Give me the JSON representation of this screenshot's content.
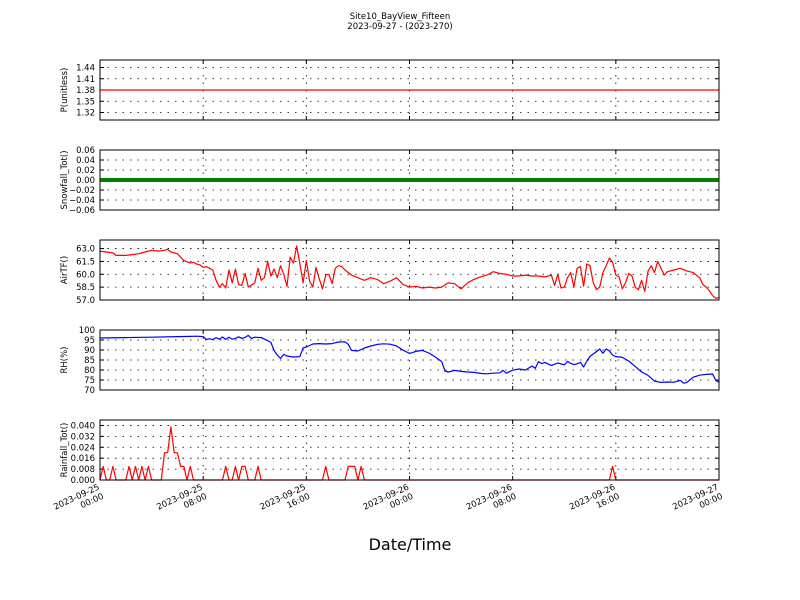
{
  "title": "Site10_BayView_Fifteen",
  "subtitle": "2023-09-27 - (2023-270)",
  "xlabel": "Date/Time",
  "x_ticks": [
    {
      "l1": "2023-09-25",
      "l2": "00:00",
      "h": 0
    },
    {
      "l1": "2023-09-25",
      "l2": "08:00",
      "h": 8
    },
    {
      "l1": "2023-09-25",
      "l2": "16:00",
      "h": 16
    },
    {
      "l1": "2023-09-26",
      "l2": "00:00",
      "h": 24
    },
    {
      "l1": "2023-09-26",
      "l2": "08:00",
      "h": 32
    },
    {
      "l1": "2023-09-26",
      "l2": "16:00",
      "h": 40
    },
    {
      "l1": "2023-09-27",
      "l2": "00:00",
      "h": 48
    }
  ],
  "chart_data": [
    {
      "type": "line",
      "ylabel": "P(unitless)",
      "ylim": [
        1.3,
        1.46
      ],
      "yticks": [
        1.32,
        1.35,
        1.38,
        1.41,
        1.44
      ],
      "ytick_labels": [
        "1.32",
        "1.35",
        "1.38",
        "1.41",
        "1.44"
      ],
      "color": "#ff0000",
      "grid": true,
      "points": [
        [
          0,
          1.38
        ],
        [
          48,
          1.38
        ]
      ]
    },
    {
      "type": "line",
      "ylabel": "Snowfall_Tot()",
      "ylim": [
        -0.06,
        0.06
      ],
      "yticks": [
        -0.06,
        -0.04,
        -0.02,
        0.0,
        0.02,
        0.04,
        0.06
      ],
      "ytick_labels": [
        "−0.06",
        "−0.04",
        "−0.02",
        "0.00",
        "0.02",
        "0.04",
        "0.06"
      ],
      "color": "#008000",
      "markers": true,
      "grid": true,
      "points": [
        [
          0,
          0
        ],
        [
          48,
          0
        ]
      ]
    },
    {
      "type": "line",
      "ylabel": "AirTF()",
      "ylim": [
        57.0,
        64.0
      ],
      "yticks": [
        57.0,
        58.5,
        60.0,
        61.5,
        63.0
      ],
      "ytick_labels": [
        "57.0",
        "58.5",
        "60.0",
        "61.5",
        "63.0"
      ],
      "color": "#ff0000",
      "grid": true,
      "points": [
        [
          0,
          62.7
        ],
        [
          0.5,
          62.6
        ],
        [
          1,
          62.5
        ],
        [
          1.25,
          62.2
        ],
        [
          2,
          62.2
        ],
        [
          2.5,
          62.3
        ],
        [
          3,
          62.4
        ],
        [
          3.5,
          62.6
        ],
        [
          4,
          62.8
        ],
        [
          4.5,
          62.7
        ],
        [
          5,
          62.8
        ],
        [
          5.25,
          62.9
        ],
        [
          5.5,
          62.6
        ],
        [
          6,
          62.4
        ],
        [
          6.25,
          62.0
        ],
        [
          6.5,
          61.6
        ],
        [
          7,
          61.3
        ],
        [
          7.25,
          61.4
        ],
        [
          7.5,
          61.2
        ],
        [
          7.75,
          61.1
        ],
        [
          8,
          60.8
        ],
        [
          8.25,
          60.9
        ],
        [
          8.5,
          60.7
        ],
        [
          8.75,
          60.5
        ],
        [
          9,
          59.3
        ],
        [
          9.25,
          58.5
        ],
        [
          9.5,
          58.9
        ],
        [
          9.75,
          58.4
        ],
        [
          10,
          60.5
        ],
        [
          10.25,
          59.0
        ],
        [
          10.5,
          60.6
        ],
        [
          10.75,
          58.8
        ],
        [
          11,
          58.7
        ],
        [
          11.25,
          60.1
        ],
        [
          11.5,
          58.5
        ],
        [
          12,
          59.0
        ],
        [
          12.25,
          60.7
        ],
        [
          12.5,
          59.3
        ],
        [
          12.75,
          59.6
        ],
        [
          13,
          61.5
        ],
        [
          13.25,
          59.8
        ],
        [
          13.5,
          60.6
        ],
        [
          13.75,
          59.6
        ],
        [
          14,
          61.0
        ],
        [
          14.25,
          60.0
        ],
        [
          14.5,
          58.6
        ],
        [
          14.75,
          62.0
        ],
        [
          15,
          61.3
        ],
        [
          15.25,
          63.3
        ],
        [
          15.5,
          61.2
        ],
        [
          15.75,
          59.0
        ],
        [
          16,
          61.6
        ],
        [
          16.25,
          59.2
        ],
        [
          16.5,
          58.5
        ],
        [
          16.75,
          60.8
        ],
        [
          17,
          59.5
        ],
        [
          17.25,
          58.3
        ],
        [
          17.5,
          59.9
        ],
        [
          17.75,
          60.0
        ],
        [
          18,
          58.9
        ],
        [
          18.25,
          60.7
        ],
        [
          18.5,
          61.0
        ],
        [
          18.75,
          60.9
        ],
        [
          19,
          60.5
        ],
        [
          19.5,
          59.9
        ],
        [
          20,
          59.6
        ],
        [
          20.5,
          59.3
        ],
        [
          21,
          59.6
        ],
        [
          21.5,
          59.4
        ],
        [
          22,
          58.9
        ],
        [
          22.5,
          59.2
        ],
        [
          23,
          59.6
        ],
        [
          23.5,
          58.8
        ],
        [
          24,
          58.5
        ],
        [
          24.5,
          58.6
        ],
        [
          25,
          58.4
        ],
        [
          25.5,
          58.5
        ],
        [
          26,
          58.4
        ],
        [
          26.5,
          58.5
        ],
        [
          27,
          59.0
        ],
        [
          27.5,
          58.9
        ],
        [
          28,
          58.3
        ],
        [
          28.5,
          59.0
        ],
        [
          29,
          59.4
        ],
        [
          29.5,
          59.7
        ],
        [
          30,
          59.9
        ],
        [
          30.5,
          60.3
        ],
        [
          31,
          60.1
        ],
        [
          31.5,
          60.0
        ],
        [
          32,
          59.8
        ],
        [
          32.5,
          59.8
        ],
        [
          33,
          59.9
        ],
        [
          33.5,
          59.8
        ],
        [
          34,
          59.8
        ],
        [
          34.5,
          59.7
        ],
        [
          35,
          59.9
        ],
        [
          35.25,
          58.7
        ],
        [
          35.5,
          60.0
        ],
        [
          35.75,
          58.4
        ],
        [
          36,
          58.5
        ],
        [
          36.25,
          59.6
        ],
        [
          36.5,
          60.2
        ],
        [
          36.75,
          58.5
        ],
        [
          37,
          60.7
        ],
        [
          37.25,
          60.9
        ],
        [
          37.5,
          58.6
        ],
        [
          37.75,
          61.2
        ],
        [
          38,
          61.0
        ],
        [
          38.25,
          59.0
        ],
        [
          38.5,
          58.2
        ],
        [
          38.75,
          58.5
        ],
        [
          39,
          60.2
        ],
        [
          39.25,
          61.0
        ],
        [
          39.5,
          61.9
        ],
        [
          39.75,
          61.4
        ],
        [
          40,
          59.9
        ],
        [
          40.25,
          59.7
        ],
        [
          40.5,
          58.3
        ],
        [
          40.75,
          59.0
        ],
        [
          41,
          60.1
        ],
        [
          41.25,
          59.8
        ],
        [
          41.5,
          58.5
        ],
        [
          41.75,
          58.2
        ],
        [
          42,
          59.3
        ],
        [
          42.25,
          58.0
        ],
        [
          42.5,
          60.4
        ],
        [
          42.75,
          61.0
        ],
        [
          43,
          60.2
        ],
        [
          43.25,
          61.5
        ],
        [
          43.5,
          60.7
        ],
        [
          43.75,
          59.9
        ],
        [
          44,
          60.3
        ],
        [
          44.5,
          60.5
        ],
        [
          45,
          60.7
        ],
        [
          45.5,
          60.4
        ],
        [
          46,
          60.2
        ],
        [
          46.5,
          59.6
        ],
        [
          46.75,
          58.8
        ],
        [
          47,
          58.5
        ],
        [
          47.25,
          58.1
        ],
        [
          47.5,
          57.5
        ],
        [
          47.75,
          57.2
        ],
        [
          48,
          57.3
        ]
      ]
    },
    {
      "type": "line",
      "ylabel": "RH(%)",
      "ylim": [
        70,
        100
      ],
      "yticks": [
        70,
        75,
        80,
        85,
        90,
        95,
        100
      ],
      "ytick_labels": [
        "70",
        "75",
        "80",
        "85",
        "90",
        "95",
        "100"
      ],
      "color": "#0000ff",
      "grid": true,
      "points": [
        [
          0,
          96
        ],
        [
          2,
          96.2
        ],
        [
          4,
          96.4
        ],
        [
          6,
          96.7
        ],
        [
          7,
          96.8
        ],
        [
          7.5,
          96.9
        ],
        [
          8,
          96.7
        ],
        [
          8.25,
          95.3
        ],
        [
          8.5,
          95.6
        ],
        [
          8.75,
          95.2
        ],
        [
          9,
          96.2
        ],
        [
          9.25,
          95.4
        ],
        [
          9.5,
          96.5
        ],
        [
          9.75,
          95.3
        ],
        [
          10,
          96.4
        ],
        [
          10.25,
          95.4
        ],
        [
          10.5,
          95.8
        ],
        [
          10.75,
          96.6
        ],
        [
          11,
          95.8
        ],
        [
          11.25,
          96.3
        ],
        [
          11.5,
          97.3
        ],
        [
          11.75,
          95.8
        ],
        [
          12,
          96.4
        ],
        [
          12.5,
          96.2
        ],
        [
          13,
          94.7
        ],
        [
          13.25,
          93.8
        ],
        [
          13.5,
          89.7
        ],
        [
          13.75,
          87.5
        ],
        [
          14,
          85.8
        ],
        [
          14.25,
          87.8
        ],
        [
          14.5,
          87.0
        ],
        [
          15,
          86.5
        ],
        [
          15.5,
          86.7
        ],
        [
          15.75,
          91.0
        ],
        [
          16,
          91.5
        ],
        [
          16.5,
          93.0
        ],
        [
          17,
          93.2
        ],
        [
          17.5,
          93.0
        ],
        [
          18,
          93.2
        ],
        [
          18.5,
          94.0
        ],
        [
          19,
          94.1
        ],
        [
          19.25,
          92.9
        ],
        [
          19.5,
          89.8
        ],
        [
          20,
          89.5
        ],
        [
          20.5,
          91.0
        ],
        [
          21,
          92.0
        ],
        [
          21.5,
          92.8
        ],
        [
          22,
          93.1
        ],
        [
          22.5,
          92.9
        ],
        [
          23,
          92.0
        ],
        [
          23.5,
          89.9
        ],
        [
          24,
          88.3
        ],
        [
          24.5,
          89.3
        ],
        [
          25,
          89.8
        ],
        [
          25.5,
          88.5
        ],
        [
          26,
          86.5
        ],
        [
          26.5,
          84.2
        ],
        [
          26.75,
          79.5
        ],
        [
          27,
          79.0
        ],
        [
          27.5,
          79.8
        ],
        [
          28,
          79.3
        ],
        [
          28.5,
          79.0
        ],
        [
          29,
          78.8
        ],
        [
          29.5,
          78.3
        ],
        [
          30,
          78.1
        ],
        [
          30.5,
          78.4
        ],
        [
          31,
          78.6
        ],
        [
          31.25,
          79.8
        ],
        [
          31.5,
          78.4
        ],
        [
          32,
          79.9
        ],
        [
          32.5,
          80.5
        ],
        [
          33,
          80.0
        ],
        [
          33.5,
          82.0
        ],
        [
          33.75,
          80.8
        ],
        [
          34,
          84.2
        ],
        [
          34.25,
          83.2
        ],
        [
          34.5,
          83.8
        ],
        [
          35,
          82.3
        ],
        [
          35.5,
          83.5
        ],
        [
          36,
          82.6
        ],
        [
          36.25,
          84.3
        ],
        [
          36.5,
          83.3
        ],
        [
          36.75,
          82.7
        ],
        [
          37,
          83.1
        ],
        [
          37.25,
          83.8
        ],
        [
          37.5,
          81.5
        ],
        [
          37.75,
          84.5
        ],
        [
          38,
          86.8
        ],
        [
          38.5,
          89.2
        ],
        [
          38.75,
          90.5
        ],
        [
          39,
          88.4
        ],
        [
          39.25,
          90.5
        ],
        [
          39.5,
          89.5
        ],
        [
          39.75,
          87.5
        ],
        [
          40,
          86.7
        ],
        [
          40.5,
          86.3
        ],
        [
          41,
          84.5
        ],
        [
          41.5,
          81.8
        ],
        [
          42,
          79.0
        ],
        [
          42.5,
          77.3
        ],
        [
          43,
          74.4
        ],
        [
          43.5,
          73.8
        ],
        [
          44,
          74.0
        ],
        [
          44.5,
          73.9
        ],
        [
          45,
          74.8
        ],
        [
          45.25,
          73.4
        ],
        [
          45.5,
          73.8
        ],
        [
          46,
          76.4
        ],
        [
          46.5,
          77.4
        ],
        [
          47,
          77.8
        ],
        [
          47.5,
          78.0
        ],
        [
          47.75,
          74.8
        ],
        [
          48,
          73.9
        ]
      ]
    },
    {
      "type": "line",
      "ylabel": "Rainfall_Tot()",
      "ylim": [
        0.0,
        0.044
      ],
      "yticks": [
        0.0,
        0.008,
        0.016,
        0.024,
        0.032,
        0.04
      ],
      "ytick_labels": [
        "0.000",
        "0.008",
        "0.016",
        "0.024",
        "0.032",
        "0.040"
      ],
      "color": "#ff0000",
      "grid": true,
      "points": [
        [
          0,
          0.0
        ],
        [
          0.25,
          0.01
        ],
        [
          0.5,
          0.0
        ],
        [
          0.75,
          0.0
        ],
        [
          1,
          0.01
        ],
        [
          1.25,
          0.0
        ],
        [
          1.5,
          0.0
        ],
        [
          2,
          0.0
        ],
        [
          2.25,
          0.01
        ],
        [
          2.5,
          0.0
        ],
        [
          2.75,
          0.01
        ],
        [
          3,
          0.0
        ],
        [
          3.25,
          0.01
        ],
        [
          3.5,
          0.0
        ],
        [
          3.75,
          0.01
        ],
        [
          4,
          0.0
        ],
        [
          4.5,
          0.0
        ],
        [
          4.75,
          0.0
        ],
        [
          5,
          0.02
        ],
        [
          5.25,
          0.02
        ],
        [
          5.5,
          0.039
        ],
        [
          5.75,
          0.02
        ],
        [
          6,
          0.02
        ],
        [
          6.25,
          0.01
        ],
        [
          6.5,
          0.01
        ],
        [
          6.75,
          0.0
        ],
        [
          7,
          0.01
        ],
        [
          7.25,
          0.0
        ],
        [
          9,
          0.0
        ],
        [
          9.5,
          0.0
        ],
        [
          9.75,
          0.01
        ],
        [
          10,
          0.0
        ],
        [
          10.25,
          0.0
        ],
        [
          10.5,
          0.01
        ],
        [
          10.75,
          0.0
        ],
        [
          11,
          0.01
        ],
        [
          11.25,
          0.01
        ],
        [
          11.5,
          0.0
        ],
        [
          12,
          0.0
        ],
        [
          12.25,
          0.01
        ],
        [
          12.5,
          0.0
        ],
        [
          17.25,
          0.0
        ],
        [
          17.5,
          0.01
        ],
        [
          17.75,
          0.0
        ],
        [
          19,
          0.0
        ],
        [
          19.25,
          0.01
        ],
        [
          19.75,
          0.01
        ],
        [
          20,
          0.0
        ],
        [
          20.25,
          0.01
        ],
        [
          20.5,
          0.0
        ],
        [
          39.5,
          0.0
        ],
        [
          39.75,
          0.01
        ],
        [
          40,
          0.0
        ],
        [
          48,
          0.0
        ]
      ]
    }
  ]
}
